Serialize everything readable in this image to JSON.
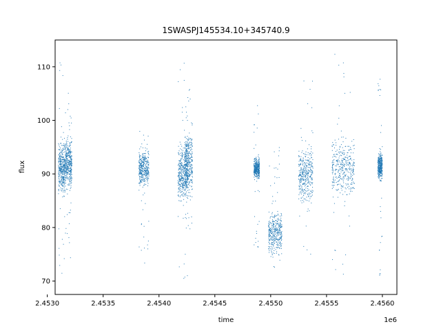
{
  "chart_data": {
    "type": "scatter",
    "title": "1SWASPJ145534.10+345740.9",
    "xlabel": "time",
    "ylabel": "flux",
    "x_offset_label": "1e6",
    "xlim": [
      2.45307,
      2.45613
    ],
    "ylim": [
      67.5,
      115
    ],
    "x_ticks": [
      2.453,
      2.4535,
      2.454,
      2.4545,
      2.455,
      2.4555,
      2.456
    ],
    "x_tick_labels": [
      "2.4530",
      "2.4535",
      "2.4540",
      "2.4545",
      "2.4550",
      "2.4555",
      "2.4560"
    ],
    "y_ticks": [
      70,
      80,
      90,
      100,
      110
    ],
    "y_tick_labels": [
      "70",
      "80",
      "90",
      "100",
      "110"
    ],
    "grid": false,
    "point_color": "#1f77b4",
    "clusters": [
      {
        "x_range": [
          2.4531,
          2.45316
        ],
        "y_center": 91,
        "y_spread": 4.5,
        "outlier_range": [
          70.5,
          112
        ]
      },
      {
        "x_range": [
          2.45316,
          2.45322
        ],
        "y_center": 92,
        "y_spread": 4.5,
        "outlier_range": [
          74,
          106
        ]
      },
      {
        "x_range": [
          2.45382,
          2.45391
        ],
        "y_center": 91,
        "y_spread": 3.5,
        "outlier_range": [
          73,
          98
        ]
      },
      {
        "x_range": [
          2.45417,
          2.45426
        ],
        "y_center": 90,
        "y_spread": 5,
        "outlier_range": [
          70,
          112.5
        ]
      },
      {
        "x_range": [
          2.45423,
          2.4543
        ],
        "y_center": 92,
        "y_spread": 6,
        "outlier_range": [
          75,
          106
        ]
      },
      {
        "x_range": [
          2.45485,
          2.4549
        ],
        "y_center": 91,
        "y_spread": 2,
        "outlier_range": [
          76,
          103
        ]
      },
      {
        "x_range": [
          2.45498,
          2.4551
        ],
        "y_center": 79,
        "y_spread": 4,
        "outlier_range": [
          72,
          95
        ]
      },
      {
        "x_range": [
          2.45525,
          2.45538
        ],
        "y_center": 90,
        "y_spread": 5,
        "outlier_range": [
          71,
          110
        ]
      },
      {
        "x_range": [
          2.45555,
          2.45575
        ],
        "y_center": 91,
        "y_spread": 5.5,
        "outlier_range": [
          70,
          113
        ]
      },
      {
        "x_range": [
          2.45596,
          2.456
        ],
        "y_center": 91.5,
        "y_spread": 2.5,
        "outlier_range": [
          70,
          109
        ]
      }
    ]
  }
}
